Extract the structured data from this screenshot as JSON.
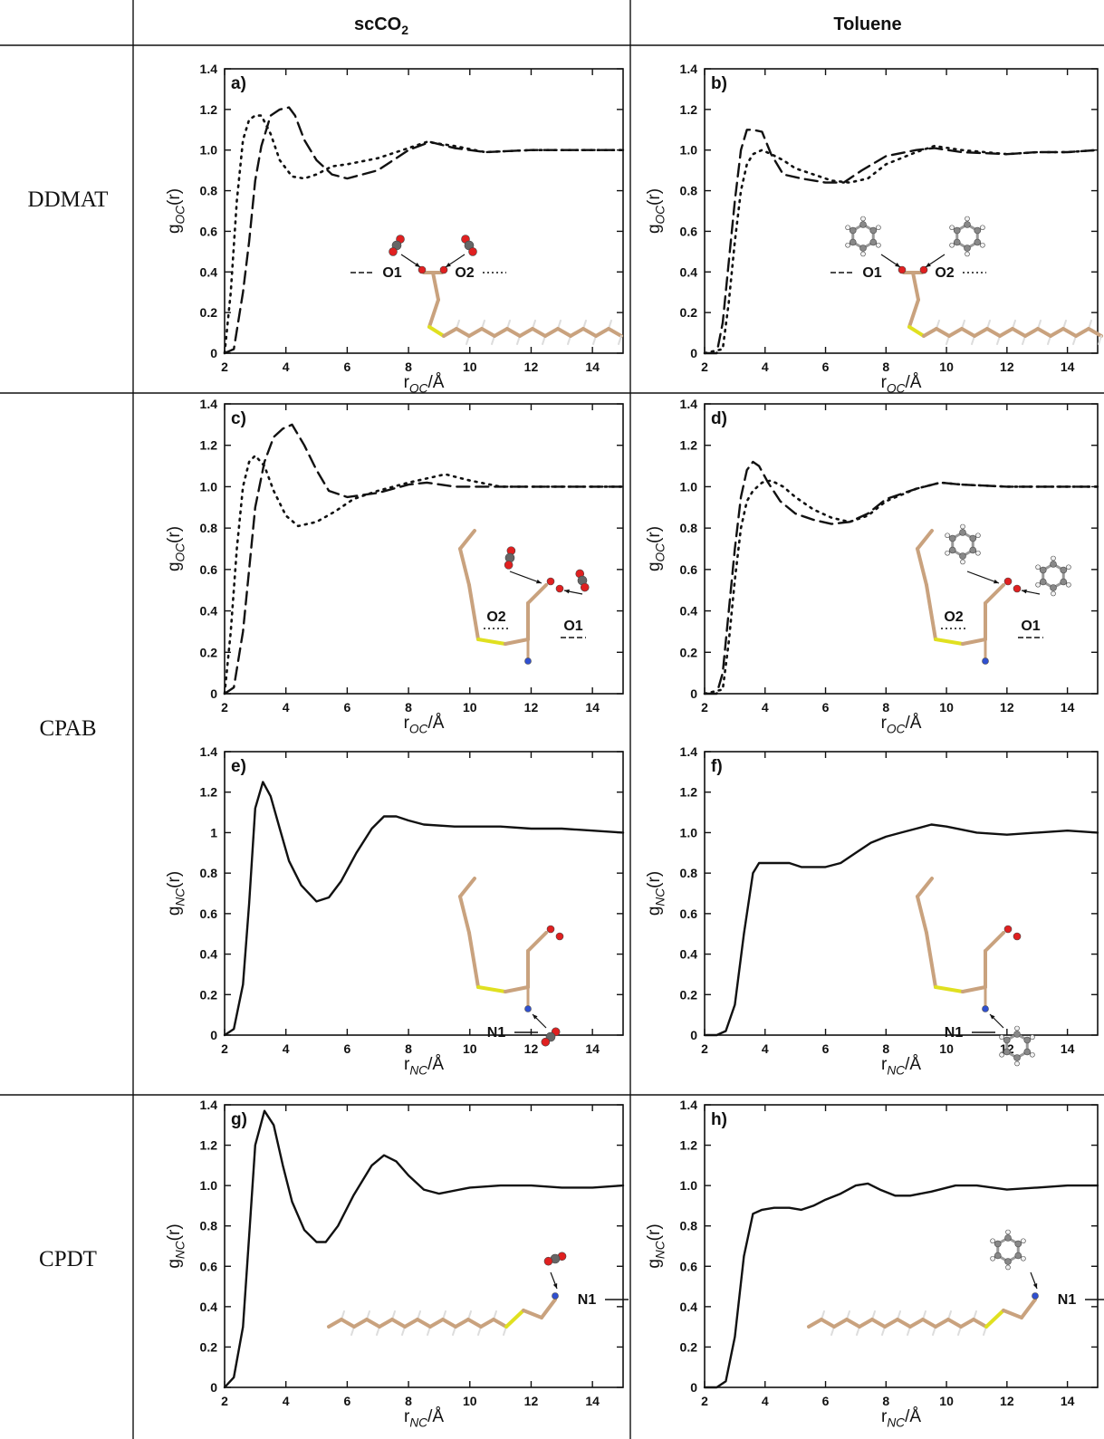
{
  "header": {
    "columns": [
      {
        "label": "scCO",
        "sub": "2"
      },
      {
        "label": "Toluene",
        "sub": ""
      }
    ]
  },
  "rows": [
    {
      "label": "DDMAT"
    },
    {
      "label": "CPAB"
    },
    {
      "label": "CPDT"
    }
  ],
  "colors": {
    "line": "#111111",
    "background": "#ffffff",
    "carbon": "#c9a27e",
    "oxygen": "#e02020",
    "sulfur": "#e0e020",
    "nitrogen": "#3050d0",
    "hydrogen": "#f2f2f2",
    "co2_carbon": "#666666"
  },
  "chart_data": [
    {
      "panel": "a)",
      "type": "line",
      "ylabel": "g_OC(r)",
      "xlabel": "r_OC/Å",
      "xlim": [
        2,
        15
      ],
      "ylim": [
        0,
        1.4
      ],
      "xticks": [
        "2",
        "4",
        "6",
        "8",
        "10",
        "12",
        "14"
      ],
      "yticks": [
        "0",
        "0.2",
        "0.4",
        "0.6",
        "0.8",
        "1.0",
        "1.2",
        "1.4"
      ],
      "annotations": [
        "O1",
        "O2"
      ],
      "series": [
        {
          "style": "dashed",
          "x": [
            2,
            2.3,
            2.6,
            2.8,
            3.0,
            3.2,
            3.5,
            3.8,
            4.1,
            4.3,
            4.6,
            5.0,
            5.5,
            6.0,
            7,
            8,
            8.7,
            9.5,
            10.5,
            12,
            13,
            14,
            15
          ],
          "y": [
            0,
            0.02,
            0.3,
            0.55,
            0.85,
            1.02,
            1.17,
            1.2,
            1.21,
            1.17,
            1.05,
            0.95,
            0.88,
            0.86,
            0.9,
            1.0,
            1.04,
            1.01,
            0.99,
            1.0,
            1.0,
            1.0,
            1.0
          ]
        },
        {
          "style": "dotted",
          "x": [
            2,
            2.2,
            2.4,
            2.6,
            2.8,
            3.0,
            3.2,
            3.5,
            3.8,
            4.2,
            4.6,
            5.0,
            5.5,
            6,
            7,
            8,
            8.6,
            9.5,
            10.5,
            12,
            13,
            14,
            15
          ],
          "y": [
            0,
            0.3,
            0.75,
            1.05,
            1.15,
            1.17,
            1.17,
            1.08,
            0.95,
            0.87,
            0.86,
            0.88,
            0.92,
            0.93,
            0.96,
            1.01,
            1.04,
            1.02,
            0.99,
            1.0,
            1.0,
            1.0,
            1.0
          ]
        }
      ]
    },
    {
      "panel": "b)",
      "type": "line",
      "ylabel": "g_OC(r)",
      "xlabel": "r_OC/Å",
      "xlim": [
        2,
        15
      ],
      "ylim": [
        0,
        1.4
      ],
      "xticks": [
        "2",
        "4",
        "6",
        "8",
        "10",
        "12",
        "14"
      ],
      "yticks": [
        "0",
        "0.2",
        "0.4",
        "0.6",
        "0.8",
        "1.0",
        "1.2",
        "1.4"
      ],
      "annotations": [
        "O1",
        "O2"
      ],
      "series": [
        {
          "style": "dashed",
          "x": [
            2,
            2.4,
            2.6,
            2.8,
            3.0,
            3.2,
            3.4,
            3.6,
            3.9,
            4.2,
            4.6,
            5.2,
            6,
            6.6,
            7.2,
            8,
            9,
            9.6,
            10.5,
            12,
            13,
            14,
            15
          ],
          "y": [
            0,
            0,
            0.15,
            0.45,
            0.75,
            1.0,
            1.1,
            1.1,
            1.09,
            0.98,
            0.88,
            0.86,
            0.84,
            0.84,
            0.9,
            0.97,
            1.0,
            1.01,
            0.99,
            0.98,
            0.99,
            0.99,
            1.0
          ]
        },
        {
          "style": "dotted",
          "x": [
            2,
            2.6,
            2.8,
            3.0,
            3.2,
            3.4,
            3.6,
            3.9,
            4.2,
            4.6,
            5.0,
            5.6,
            6.2,
            6.8,
            7.4,
            8,
            9,
            9.6,
            10.5,
            12,
            13,
            14,
            15
          ],
          "y": [
            0,
            0.02,
            0.25,
            0.55,
            0.8,
            0.93,
            0.98,
            1.0,
            0.98,
            0.95,
            0.91,
            0.88,
            0.85,
            0.84,
            0.86,
            0.93,
            0.99,
            1.02,
            1.0,
            0.98,
            0.99,
            0.99,
            1.0
          ]
        }
      ]
    },
    {
      "panel": "c)",
      "type": "line",
      "ylabel": "g_OC(r)",
      "xlabel": "r_OC/Å",
      "xlim": [
        2,
        15
      ],
      "ylim": [
        0,
        1.4
      ],
      "xticks": [
        "2",
        "4",
        "6",
        "8",
        "10",
        "12",
        "14"
      ],
      "yticks": [
        "0",
        "0.2",
        "0.4",
        "0.6",
        "0.8",
        "1.0",
        "1.2",
        "1.4"
      ],
      "annotations": [
        "O2",
        "O1"
      ],
      "series": [
        {
          "style": "dashed",
          "x": [
            2,
            2.3,
            2.6,
            2.8,
            3.0,
            3.3,
            3.6,
            3.9,
            4.2,
            4.6,
            5.0,
            5.4,
            6,
            7,
            8,
            8.6,
            9.5,
            10.5,
            12,
            13,
            14,
            15
          ],
          "y": [
            0,
            0.03,
            0.3,
            0.6,
            0.9,
            1.12,
            1.24,
            1.28,
            1.3,
            1.2,
            1.08,
            0.98,
            0.95,
            0.97,
            1.01,
            1.02,
            1.0,
            1.0,
            1.0,
            1.0,
            1.0,
            1.0
          ]
        },
        {
          "style": "dotted",
          "x": [
            2,
            2.2,
            2.4,
            2.6,
            2.8,
            3.0,
            3.3,
            3.6,
            4.0,
            4.4,
            5.0,
            5.6,
            6.2,
            7,
            8,
            9.2,
            10,
            11,
            12,
            13,
            14,
            15
          ],
          "y": [
            0,
            0.3,
            0.7,
            1.0,
            1.12,
            1.15,
            1.1,
            0.98,
            0.86,
            0.81,
            0.83,
            0.88,
            0.94,
            0.98,
            1.02,
            1.06,
            1.03,
            1.0,
            1.0,
            1.0,
            1.0,
            1.0
          ]
        }
      ]
    },
    {
      "panel": "d)",
      "type": "line",
      "ylabel": "g_OC(r)",
      "xlabel": "r_OC/Å",
      "xlim": [
        2,
        15
      ],
      "ylim": [
        0,
        1.4
      ],
      "xticks": [
        "2",
        "4",
        "6",
        "8",
        "10",
        "12",
        "14"
      ],
      "yticks": [
        "0",
        "0.2",
        "0.4",
        "0.6",
        "0.8",
        "1.0",
        "1.2",
        "1.4"
      ],
      "annotations": [
        "O2",
        "O1"
      ],
      "series": [
        {
          "style": "dashed",
          "x": [
            2,
            2.4,
            2.6,
            2.8,
            3.0,
            3.2,
            3.4,
            3.6,
            3.8,
            4.1,
            4.5,
            5.0,
            5.6,
            6.2,
            6.8,
            7.4,
            8,
            9,
            9.8,
            10.5,
            12,
            13,
            14,
            15
          ],
          "y": [
            0,
            0,
            0.1,
            0.4,
            0.7,
            0.95,
            1.08,
            1.12,
            1.1,
            1.02,
            0.93,
            0.87,
            0.84,
            0.82,
            0.83,
            0.87,
            0.94,
            0.99,
            1.02,
            1.01,
            1.0,
            1.0,
            1.0,
            1.0
          ]
        },
        {
          "style": "dotted",
          "x": [
            2,
            2.6,
            2.8,
            3.0,
            3.2,
            3.4,
            3.6,
            3.9,
            4.2,
            4.6,
            5.0,
            5.6,
            6.2,
            6.8,
            7.4,
            8,
            9,
            9.8,
            10.5,
            12,
            13,
            14,
            15
          ],
          "y": [
            0,
            0.02,
            0.25,
            0.55,
            0.8,
            0.93,
            0.98,
            1.02,
            1.03,
            1.0,
            0.95,
            0.89,
            0.85,
            0.83,
            0.86,
            0.93,
            0.99,
            1.02,
            1.01,
            1.0,
            1.0,
            1.0,
            1.0
          ]
        }
      ]
    },
    {
      "panel": "e)",
      "type": "line",
      "ylabel": "g_NC(r)",
      "xlabel": "r_NC/Å",
      "xlim": [
        2,
        15
      ],
      "ylim": [
        0,
        1.4
      ],
      "xticks": [
        "2",
        "4",
        "6",
        "8",
        "10",
        "12",
        "14"
      ],
      "yticks": [
        "0",
        "0.2",
        "0.4",
        "0.6",
        "0.8",
        "1",
        "1.2",
        "1.4"
      ],
      "annotations": [
        "N1"
      ],
      "series": [
        {
          "style": "solid",
          "x": [
            2,
            2.3,
            2.6,
            2.8,
            3.0,
            3.25,
            3.5,
            3.8,
            4.1,
            4.5,
            5.0,
            5.4,
            5.8,
            6.3,
            6.8,
            7.2,
            7.6,
            8.0,
            8.5,
            9.5,
            11,
            12,
            13,
            14,
            15
          ],
          "y": [
            0,
            0.03,
            0.25,
            0.65,
            1.12,
            1.25,
            1.18,
            1.02,
            0.86,
            0.74,
            0.66,
            0.68,
            0.76,
            0.9,
            1.02,
            1.08,
            1.08,
            1.06,
            1.04,
            1.03,
            1.03,
            1.02,
            1.02,
            1.01,
            1.0
          ]
        }
      ]
    },
    {
      "panel": "f)",
      "type": "line",
      "ylabel": "g_NC(r)",
      "xlabel": "r_NC/Å",
      "xlim": [
        2,
        15
      ],
      "ylim": [
        0,
        1.4
      ],
      "xticks": [
        "2",
        "4",
        "6",
        "8",
        "10",
        "12",
        "14"
      ],
      "yticks": [
        "0",
        "0.2",
        "0.4",
        "0.6",
        "0.8",
        "1.0",
        "1.2",
        "1.4"
      ],
      "annotations": [
        "N1"
      ],
      "series": [
        {
          "style": "solid",
          "x": [
            2,
            2.4,
            2.7,
            3.0,
            3.3,
            3.6,
            3.8,
            4.0,
            4.4,
            4.8,
            5.2,
            5.6,
            6.0,
            6.5,
            7.0,
            7.5,
            8.0,
            8.5,
            9,
            9.5,
            10,
            11,
            12,
            13,
            14,
            15
          ],
          "y": [
            0,
            0,
            0.02,
            0.15,
            0.5,
            0.8,
            0.85,
            0.85,
            0.85,
            0.85,
            0.83,
            0.83,
            0.83,
            0.85,
            0.9,
            0.95,
            0.98,
            1.0,
            1.02,
            1.04,
            1.03,
            1.0,
            0.99,
            1.0,
            1.01,
            1.0
          ]
        }
      ]
    },
    {
      "panel": "g)",
      "type": "line",
      "ylabel": "g_NC(r)",
      "xlabel": "r_NC/Å",
      "xlim": [
        2,
        15
      ],
      "ylim": [
        0,
        1.4
      ],
      "xticks": [
        "2",
        "4",
        "6",
        "8",
        "10",
        "12",
        "14"
      ],
      "yticks": [
        "0",
        "0.2",
        "0.4",
        "0.6",
        "0.8",
        "1.0",
        "1.2",
        "1.4"
      ],
      "annotations": [
        "N1"
      ],
      "series": [
        {
          "style": "solid",
          "x": [
            2,
            2.3,
            2.6,
            2.8,
            3.0,
            3.3,
            3.6,
            3.9,
            4.2,
            4.6,
            5.0,
            5.3,
            5.7,
            6.2,
            6.8,
            7.2,
            7.6,
            8.0,
            8.5,
            9,
            10,
            11,
            12,
            13,
            14,
            15
          ],
          "y": [
            0,
            0.05,
            0.3,
            0.75,
            1.2,
            1.37,
            1.3,
            1.1,
            0.92,
            0.78,
            0.72,
            0.72,
            0.8,
            0.95,
            1.1,
            1.15,
            1.12,
            1.05,
            0.98,
            0.96,
            0.99,
            1.0,
            1.0,
            0.99,
            0.99,
            1.0
          ]
        }
      ]
    },
    {
      "panel": "h)",
      "type": "line",
      "ylabel": "g_NC(r)",
      "xlabel": "r_NC/Å",
      "xlim": [
        2,
        15
      ],
      "ylim": [
        0,
        1.4
      ],
      "xticks": [
        "2",
        "4",
        "6",
        "8",
        "10",
        "12",
        "14"
      ],
      "yticks": [
        "0",
        "0.2",
        "0.4",
        "0.6",
        "0.8",
        "1.0",
        "1.2",
        "1.4"
      ],
      "annotations": [
        "N1"
      ],
      "series": [
        {
          "style": "solid",
          "x": [
            2,
            2.4,
            2.7,
            3.0,
            3.3,
            3.6,
            3.9,
            4.3,
            4.8,
            5.2,
            5.6,
            6,
            6.5,
            7.0,
            7.4,
            7.8,
            8.3,
            8.8,
            9.5,
            10.3,
            11,
            12,
            13,
            14,
            15
          ],
          "y": [
            0,
            0,
            0.03,
            0.25,
            0.65,
            0.86,
            0.88,
            0.89,
            0.89,
            0.88,
            0.9,
            0.93,
            0.96,
            1.0,
            1.01,
            0.98,
            0.95,
            0.95,
            0.97,
            1.0,
            1.0,
            0.98,
            0.99,
            1.0,
            1.0
          ]
        }
      ]
    }
  ]
}
